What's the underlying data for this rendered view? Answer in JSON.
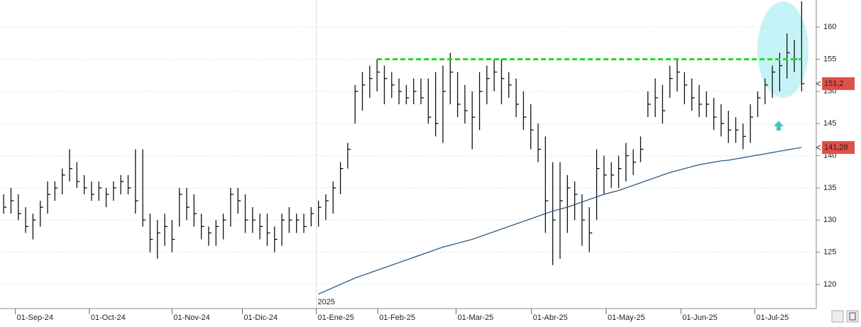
{
  "chart_data": {
    "type": "ohlc",
    "x": [
      0,
      1,
      2,
      3,
      4,
      5,
      6,
      7,
      8,
      9,
      10,
      11,
      12,
      13,
      14,
      15,
      16,
      17,
      18,
      19,
      20,
      21,
      22,
      23,
      24,
      25,
      26,
      27,
      28,
      29,
      30,
      31,
      32,
      33,
      34,
      35,
      36,
      37,
      38,
      39,
      40,
      41,
      42,
      43,
      44,
      45,
      46,
      47,
      48,
      49,
      50,
      51,
      52,
      53,
      54,
      55,
      56,
      57,
      58,
      59,
      60,
      61,
      62,
      63,
      64,
      65,
      66,
      67,
      68,
      69,
      70,
      71,
      72,
      73,
      74,
      75,
      76,
      77,
      78,
      79,
      80,
      81,
      82,
      83,
      84,
      85,
      86,
      87,
      88,
      89,
      90,
      91,
      92,
      93,
      94,
      95,
      96,
      97,
      98,
      99,
      100,
      101,
      102,
      103,
      104,
      105,
      106,
      107,
      108,
      109
    ],
    "high": [
      134,
      135,
      134,
      132,
      131,
      133,
      136,
      136,
      138,
      141,
      139,
      137,
      136,
      136,
      135,
      136,
      137,
      137,
      141,
      141,
      131,
      130,
      131,
      130,
      135,
      135,
      134,
      131,
      129,
      130,
      131,
      135,
      135,
      134,
      132,
      131,
      131,
      129,
      131,
      132,
      131,
      131,
      132,
      133,
      134,
      136,
      139,
      142,
      151,
      153,
      154,
      155,
      154,
      153,
      152,
      151,
      152,
      152,
      152,
      153,
      154,
      156,
      153,
      151,
      150,
      153,
      154,
      155,
      155,
      153,
      152,
      150,
      148,
      145,
      143,
      139,
      139,
      137,
      136,
      134,
      132,
      141,
      140,
      139,
      140,
      142,
      141,
      143,
      150,
      152,
      151,
      154,
      155,
      153,
      152,
      151,
      150,
      149,
      148,
      147,
      146,
      145,
      148,
      150,
      152,
      154,
      156,
      159,
      158,
      164
    ],
    "low": [
      131,
      131,
      130,
      128,
      127,
      129,
      131,
      133,
      134,
      136,
      135,
      134,
      133,
      133,
      132,
      133,
      134,
      134,
      131,
      129,
      125,
      124,
      126,
      125,
      129,
      130,
      129,
      127,
      126,
      126,
      127,
      129,
      131,
      128,
      128,
      127,
      126,
      125,
      126,
      128,
      128,
      128,
      129,
      129,
      130,
      131,
      134,
      138,
      145,
      147,
      149,
      150,
      148,
      149,
      148,
      148,
      148,
      148,
      145,
      143,
      142,
      148,
      146,
      145,
      141,
      144,
      148,
      150,
      148,
      149,
      146,
      144,
      141,
      139,
      128,
      123,
      124,
      128,
      130,
      126,
      125,
      130,
      134,
      135,
      135,
      136,
      137,
      139,
      146,
      146,
      145,
      149,
      150,
      148,
      147,
      146,
      146,
      144,
      143,
      142,
      142,
      141,
      142,
      146,
      148,
      149,
      150,
      152,
      153,
      150
    ],
    "close": [
      132,
      133,
      131,
      129,
      130,
      132,
      134,
      135,
      137,
      138,
      136,
      135,
      134,
      135,
      134,
      135,
      136,
      135,
      133,
      130,
      127,
      128,
      129,
      127,
      134,
      132,
      131,
      129,
      128,
      129,
      130,
      134,
      133,
      130,
      130,
      129,
      128,
      127,
      130,
      130,
      130,
      129,
      131,
      132,
      133,
      135,
      138,
      141,
      150,
      151,
      152,
      153,
      152,
      151,
      150,
      149,
      150,
      149,
      146,
      145,
      150,
      153,
      148,
      147,
      146,
      150,
      152,
      153,
      152,
      151,
      148,
      146,
      144,
      141,
      133,
      130,
      133,
      135,
      134,
      130,
      128,
      138,
      137,
      137,
      138,
      140,
      139,
      141,
      148,
      149,
      147,
      152,
      153,
      151,
      149,
      148,
      148,
      146,
      145,
      144,
      144,
      143,
      146,
      149,
      151,
      153,
      154,
      156,
      155,
      151.2
    ],
    "bar_color": "#111111",
    "ma": {
      "color": "#1f4e79",
      "values": [
        null,
        null,
        null,
        null,
        null,
        null,
        null,
        null,
        null,
        null,
        null,
        null,
        null,
        null,
        null,
        null,
        null,
        null,
        null,
        null,
        null,
        null,
        null,
        null,
        null,
        null,
        null,
        null,
        null,
        null,
        null,
        null,
        null,
        null,
        null,
        null,
        null,
        null,
        null,
        null,
        null,
        null,
        null,
        118.5,
        119,
        119.5,
        120,
        120.5,
        121,
        121.4,
        121.8,
        122.2,
        122.6,
        123,
        123.4,
        123.8,
        124.2,
        124.6,
        125,
        125.4,
        125.8,
        126.1,
        126.4,
        126.7,
        127,
        127.4,
        127.8,
        128.2,
        128.6,
        129,
        129.4,
        129.8,
        130.2,
        130.6,
        131,
        131.4,
        131.7,
        132,
        132.4,
        132.8,
        133.2,
        133.6,
        134,
        134.3,
        134.6,
        135,
        135.4,
        135.8,
        136.2,
        136.6,
        137,
        137.4,
        137.7,
        138,
        138.3,
        138.6,
        138.8,
        139,
        139.2,
        139.3,
        139.5,
        139.7,
        139.9,
        140.1,
        140.3,
        140.5,
        140.7,
        140.9,
        141.1,
        141.28
      ]
    },
    "xlim": [
      -0.5,
      111
    ],
    "xticks": [
      {
        "value": 1.6,
        "label": "01-Sep-24"
      },
      {
        "value": 11.7,
        "label": "01-Oct-24"
      },
      {
        "value": 23,
        "label": "01-Nov-24"
      },
      {
        "value": 32.6,
        "label": "01-Dic-24"
      },
      {
        "value": 42.7,
        "label": "01-Ene-25"
      },
      {
        "value": 51.1,
        "label": "01-Feb-25"
      },
      {
        "value": 61.8,
        "label": "01-Mar-25"
      },
      {
        "value": 72.1,
        "label": "01-Abr-25"
      },
      {
        "value": 82.3,
        "label": "01-May-25"
      },
      {
        "value": 92.5,
        "label": "01-Jun-25"
      },
      {
        "value": 102.6,
        "label": "01-Jul-25"
      }
    ],
    "ylim": [
      116.25,
      164.2
    ],
    "yticks": [
      120,
      125,
      130,
      135,
      140,
      145,
      150,
      155,
      160
    ],
    "grid": true,
    "resistance": {
      "value": 155,
      "from": 51,
      "to": 109,
      "color": "#22dd22"
    },
    "year_marker": {
      "x": 42.7,
      "label": "2025"
    },
    "price_labels": [
      {
        "value": 151.2,
        "label": "151,2",
        "color": "#e0504a"
      },
      {
        "value": 141.28,
        "label": "141,28",
        "color": "#e0504a"
      }
    ]
  }
}
